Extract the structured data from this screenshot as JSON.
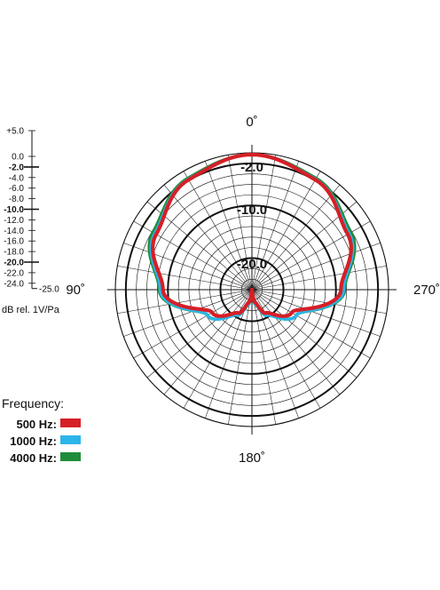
{
  "chart_data": {
    "type": "polar",
    "radial_unit": "dB rel. 1V/Pa",
    "radial_range": [
      -25.0,
      0.0
    ],
    "scale_ticks": [
      "+5.0",
      "0.0",
      "-2.0",
      "-4.0",
      "-6.0",
      "-8.0",
      "-10.0",
      "-12.0",
      "-14.0",
      "-16.0",
      "-18.0",
      "-20.0",
      "-22.0",
      "-24.0",
      "-25.0"
    ],
    "scale_values": [
      5,
      0,
      -2,
      -4,
      -6,
      -8,
      -10,
      -12,
      -14,
      -16,
      -18,
      -20,
      -22,
      -24,
      -25
    ],
    "ring_labels": [
      {
        "text": "-2.0",
        "value": -2
      },
      {
        "text": "-10.0",
        "value": -10
      },
      {
        "text": "-20.0",
        "value": -20
      }
    ],
    "angle_labels": [
      {
        "text": "0˚",
        "angle": 0
      },
      {
        "text": "90˚",
        "angle": 90
      },
      {
        "text": "180˚",
        "angle": 180
      },
      {
        "text": "270˚",
        "angle": 270
      }
    ],
    "legend_title": "Frequency:",
    "series": [
      {
        "name": "500 Hz:",
        "color": "#d61f26",
        "angles": [
          0,
          30,
          60,
          90,
          120,
          150,
          165,
          180
        ],
        "values": [
          0,
          -1.5,
          -4.5,
          -8.5,
          -16.5,
          -20,
          -22.5,
          -25
        ]
      },
      {
        "name": "1000 Hz:",
        "color": "#2cb5e8",
        "angles": [
          0,
          30,
          60,
          90,
          120,
          150,
          165,
          180
        ],
        "values": [
          0,
          -1.4,
          -4.2,
          -8,
          -15.5,
          -19.5,
          -22,
          -25
        ]
      },
      {
        "name": "4000 Hz:",
        "color": "#1e8c3a",
        "angles": [
          0,
          30,
          60,
          90,
          120,
          150,
          165,
          180
        ],
        "values": [
          0,
          -1.2,
          -3.8,
          -7.8,
          -15.5,
          -19.5,
          -22,
          -25
        ]
      }
    ]
  }
}
